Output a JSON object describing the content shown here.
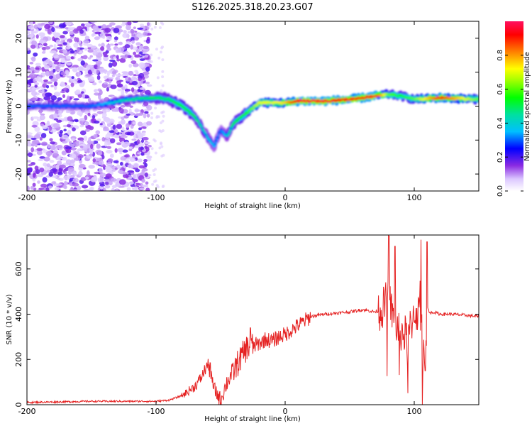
{
  "figure": {
    "title": "S126.2025.318.20.23.G07"
  },
  "chart_data": [
    {
      "type": "heatmap",
      "title": "",
      "xlabel": "Height of straight line (km)",
      "ylabel": "Frequency (Hz)",
      "xlim": [
        -200,
        150
      ],
      "ylim": [
        -25,
        25
      ],
      "xticks": [
        -200,
        -100,
        0,
        100
      ],
      "yticks": [
        -20,
        -10,
        0,
        10,
        20
      ],
      "ridge": {
        "x": [
          -200,
          -150,
          -120,
          -100,
          -90,
          -80,
          -70,
          -62,
          -55,
          -50,
          -45,
          -40,
          -30,
          -20,
          -10,
          0,
          10,
          30,
          50,
          70,
          80,
          90,
          100,
          120,
          150
        ],
        "y": [
          0,
          0,
          2,
          2.5,
          2,
          0,
          -3,
          -8,
          -12,
          -7,
          -9,
          -5,
          -2,
          1,
          1,
          1,
          1.5,
          1.5,
          2,
          3,
          3.5,
          3,
          2,
          2.5,
          2
        ],
        "amplitude": [
          0.3,
          0.3,
          0.45,
          0.5,
          0.5,
          0.55,
          0.5,
          0.4,
          0.35,
          0.3,
          0.4,
          0.5,
          0.55,
          0.7,
          0.7,
          0.75,
          0.95,
          0.95,
          0.9,
          0.95,
          0.6,
          0.55,
          0.6,
          0.9,
          0.6
        ]
      },
      "colorbar": {
        "label": "Normalized spectral amplitude",
        "range": [
          0,
          1
        ],
        "ticks": [
          "0.0",
          "0.2",
          "0.4",
          "0.6",
          "0.8"
        ],
        "tick_values": [
          0,
          0.2,
          0.4,
          0.6,
          0.8
        ]
      }
    },
    {
      "type": "line",
      "title": "",
      "xlabel": "Height of straight line (km)",
      "ylabel": "SNR (10 * v/v)",
      "xlim": [
        -200,
        150
      ],
      "ylim": [
        0,
        750
      ],
      "xticks": [
        -200,
        -100,
        0,
        100
      ],
      "yticks": [
        0,
        200,
        400,
        600
      ],
      "series": [
        {
          "name": "SNR",
          "color": "#e52222",
          "x": [
            -200,
            -150,
            -100,
            -90,
            -80,
            -70,
            -65,
            -60,
            -55,
            -50,
            -45,
            -40,
            -35,
            -30,
            -25,
            -20,
            -15,
            -10,
            -5,
            0,
            10,
            20,
            30,
            50,
            60,
            70,
            75,
            80,
            85,
            90,
            95,
            100,
            105,
            108,
            110,
            115,
            120,
            130,
            150
          ],
          "y": [
            10,
            15,
            15,
            20,
            40,
            80,
            120,
            180,
            70,
            20,
            100,
            150,
            200,
            250,
            260,
            270,
            290,
            280,
            300,
            310,
            350,
            390,
            400,
            410,
            420,
            410,
            420,
            480,
            350,
            320,
            300,
            410,
            400,
            150,
            400,
            410,
            400,
            400,
            390
          ]
        }
      ]
    }
  ]
}
